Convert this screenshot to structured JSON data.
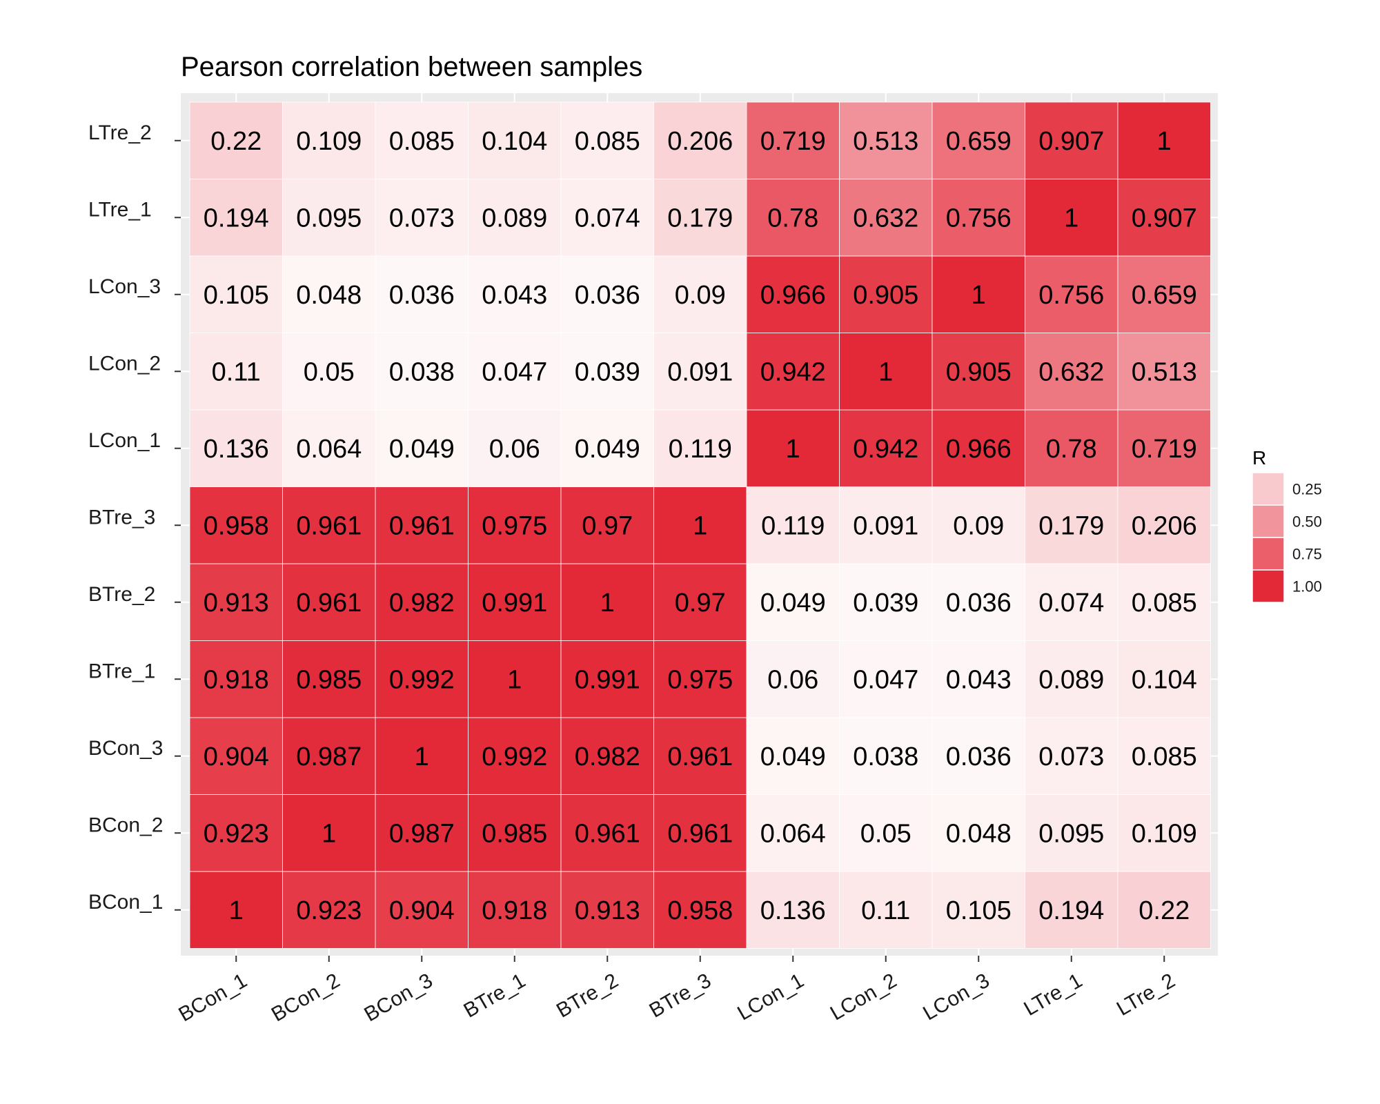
{
  "chart_data": {
    "type": "heatmap",
    "title": "Pearson correlation between samples",
    "x_categories": [
      "BCon_1",
      "BCon_2",
      "BCon_3",
      "BTre_1",
      "BTre_2",
      "BTre_3",
      "LCon_1",
      "LCon_2",
      "LCon_3",
      "LTre_1",
      "LTre_2"
    ],
    "y_categories": [
      "BCon_1",
      "BCon_2",
      "BCon_3",
      "BTre_1",
      "BTre_2",
      "BTre_3",
      "LCon_1",
      "LCon_2",
      "LCon_3",
      "LTre_1",
      "LTre_2"
    ],
    "matrix": [
      [
        "1",
        "0.923",
        "0.904",
        "0.918",
        "0.913",
        "0.958",
        "0.136",
        "0.11",
        "0.105",
        "0.194",
        "0.22"
      ],
      [
        "0.923",
        "1",
        "0.987",
        "0.985",
        "0.961",
        "0.961",
        "0.064",
        "0.05",
        "0.048",
        "0.095",
        "0.109"
      ],
      [
        "0.904",
        "0.987",
        "1",
        "0.992",
        "0.982",
        "0.961",
        "0.049",
        "0.038",
        "0.036",
        "0.073",
        "0.085"
      ],
      [
        "0.918",
        "0.985",
        "0.992",
        "1",
        "0.991",
        "0.975",
        "0.06",
        "0.047",
        "0.043",
        "0.089",
        "0.104"
      ],
      [
        "0.913",
        "0.961",
        "0.982",
        "0.991",
        "1",
        "0.97",
        "0.049",
        "0.039",
        "0.036",
        "0.074",
        "0.085"
      ],
      [
        "0.958",
        "0.961",
        "0.961",
        "0.975",
        "0.97",
        "1",
        "0.119",
        "0.091",
        "0.09",
        "0.179",
        "0.206"
      ],
      [
        "0.136",
        "0.064",
        "0.049",
        "0.06",
        "0.049",
        "0.119",
        "1",
        "0.942",
        "0.966",
        "0.78",
        "0.719"
      ],
      [
        "0.11",
        "0.05",
        "0.038",
        "0.047",
        "0.039",
        "0.091",
        "0.942",
        "1",
        "0.905",
        "0.632",
        "0.513"
      ],
      [
        "0.105",
        "0.048",
        "0.036",
        "0.043",
        "0.036",
        "0.09",
        "0.966",
        "0.905",
        "1",
        "0.756",
        "0.659"
      ],
      [
        "0.194",
        "0.095",
        "0.073",
        "0.089",
        "0.074",
        "0.179",
        "0.78",
        "0.632",
        "0.756",
        "1",
        "0.907"
      ],
      [
        "0.22",
        "0.109",
        "0.085",
        "0.104",
        "0.085",
        "0.206",
        "0.719",
        "0.513",
        "0.659",
        "0.907",
        "1"
      ]
    ],
    "legend": {
      "title": "R",
      "labels": [
        "0.25",
        "0.50",
        "0.75",
        "1.00"
      ],
      "values": [
        0.25,
        0.5,
        0.75,
        1.0
      ],
      "placement": "right"
    },
    "color_scale": {
      "low": "#ffffff",
      "high": "#e32938"
    },
    "panel_background": "#ebebeb",
    "grid": true
  }
}
